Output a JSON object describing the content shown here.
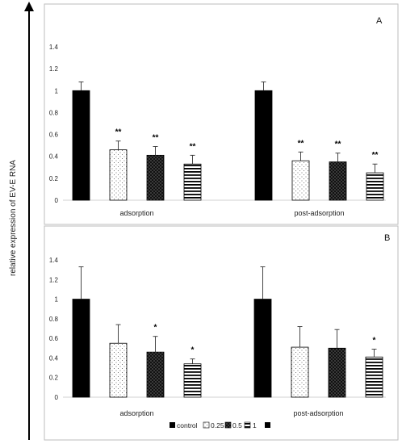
{
  "figure": {
    "ylabel": "relative expression of EV-E RNA"
  },
  "colors": {
    "bar_fill_control": "#000000",
    "axis": "#d0d0d0",
    "frame": "#bdbdbd",
    "errorbar": "#333333"
  },
  "legend": {
    "entries": [
      {
        "label": "control",
        "pattern": "solid"
      },
      {
        "label": "0.25",
        "pattern": "dots"
      },
      {
        "label": "0.5",
        "pattern": "dense"
      },
      {
        "label": "1",
        "pattern": "hlines"
      },
      {
        "label": "",
        "pattern": "solid"
      }
    ]
  },
  "chart_data": [
    {
      "panel": "A",
      "type": "bar",
      "categories": [
        "adsorption",
        "post-adsorption"
      ],
      "ylim": [
        0,
        1.4
      ],
      "yticks": [
        "0",
        "0.2",
        "0.4",
        "0.6",
        "0.8",
        "1",
        "1.2",
        "1.4"
      ],
      "grid": false,
      "series": [
        {
          "name": "control",
          "pattern": "solid",
          "values": [
            1.0,
            1.0
          ],
          "errors": [
            0.08,
            0.08
          ],
          "sig": [
            "",
            ""
          ]
        },
        {
          "name": "0.25",
          "pattern": "dots",
          "values": [
            0.46,
            0.36
          ],
          "errors": [
            0.08,
            0.08
          ],
          "sig": [
            "**",
            "**"
          ]
        },
        {
          "name": "0.5",
          "pattern": "dense",
          "values": [
            0.41,
            0.35
          ],
          "errors": [
            0.08,
            0.08
          ],
          "sig": [
            "**",
            "**"
          ]
        },
        {
          "name": "1",
          "pattern": "hlines",
          "values": [
            0.33,
            0.25
          ],
          "errors": [
            0.08,
            0.08
          ],
          "sig": [
            "**",
            "**"
          ]
        }
      ]
    },
    {
      "panel": "B",
      "type": "bar",
      "categories": [
        "adsorption",
        "post-adsorption"
      ],
      "ylim": [
        0,
        1.4
      ],
      "yticks": [
        "0",
        "0.2",
        "0.4",
        "0.6",
        "0.8",
        "1",
        "1.2",
        "1.4"
      ],
      "grid": false,
      "series": [
        {
          "name": "control",
          "pattern": "solid",
          "values": [
            1.0,
            1.0
          ],
          "errors": [
            0.33,
            0.33
          ],
          "sig": [
            "",
            ""
          ]
        },
        {
          "name": "0.25",
          "pattern": "dots",
          "values": [
            0.55,
            0.51
          ],
          "errors": [
            0.19,
            0.21
          ],
          "sig": [
            "",
            ""
          ]
        },
        {
          "name": "0.5",
          "pattern": "dense",
          "values": [
            0.46,
            0.5
          ],
          "errors": [
            0.16,
            0.19
          ],
          "sig": [
            "*",
            ""
          ]
        },
        {
          "name": "1",
          "pattern": "hlines",
          "values": [
            0.34,
            0.41
          ],
          "errors": [
            0.05,
            0.08
          ],
          "sig": [
            "*",
            "*"
          ]
        }
      ]
    }
  ]
}
